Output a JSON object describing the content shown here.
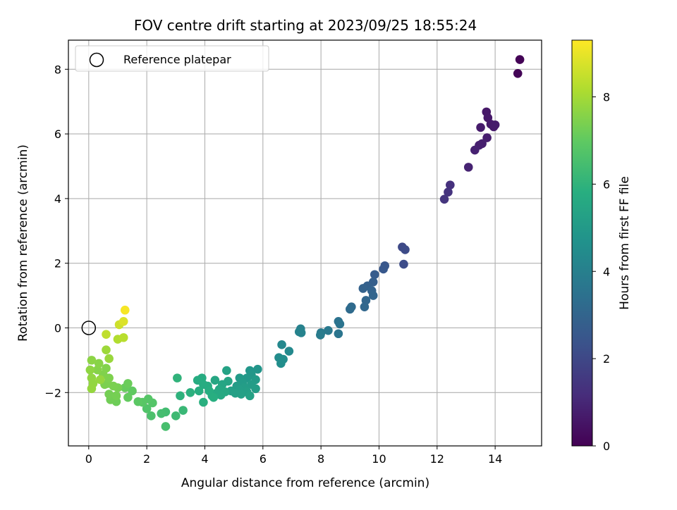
{
  "chart_data": {
    "type": "scatter",
    "title": "FOV centre drift starting at 2023/09/25 18:55:24",
    "xlabel": "Angular distance from reference (arcmin)",
    "ylabel": "Rotation from reference (arcmin)",
    "xlim": [
      -0.7,
      15.6
    ],
    "ylim": [
      -3.65,
      8.9
    ],
    "xticks": [
      "0",
      "2",
      "4",
      "6",
      "8",
      "10",
      "12",
      "14"
    ],
    "yticks": [
      "−2",
      "0",
      "2",
      "4",
      "6",
      "8"
    ],
    "grid": true,
    "legend": {
      "placement": "top-left",
      "entries": [
        "Reference platepar"
      ]
    },
    "reference_point": {
      "x": 0,
      "y": 0
    },
    "colorbar": {
      "label": "Hours from first FF file",
      "range": [
        0,
        9.3
      ],
      "ticks": [
        "0",
        "2",
        "4",
        "6",
        "8"
      ],
      "colormap": "viridis"
    },
    "points": [
      {
        "x": 14.85,
        "y": 8.3,
        "c": 0.05
      },
      {
        "x": 14.78,
        "y": 7.87,
        "c": 0.1
      },
      {
        "x": 13.7,
        "y": 6.68,
        "c": 0.6
      },
      {
        "x": 13.75,
        "y": 6.5,
        "c": 0.62
      },
      {
        "x": 13.85,
        "y": 6.3,
        "c": 0.65
      },
      {
        "x": 13.95,
        "y": 6.22,
        "c": 0.67
      },
      {
        "x": 14.0,
        "y": 6.28,
        "c": 0.68
      },
      {
        "x": 13.5,
        "y": 6.2,
        "c": 0.7
      },
      {
        "x": 13.72,
        "y": 5.88,
        "c": 0.75
      },
      {
        "x": 13.55,
        "y": 5.7,
        "c": 0.78
      },
      {
        "x": 13.45,
        "y": 5.65,
        "c": 0.8
      },
      {
        "x": 13.3,
        "y": 5.5,
        "c": 0.85
      },
      {
        "x": 13.08,
        "y": 4.97,
        "c": 0.9
      },
      {
        "x": 12.45,
        "y": 4.42,
        "c": 1.3
      },
      {
        "x": 12.38,
        "y": 4.2,
        "c": 1.35
      },
      {
        "x": 12.25,
        "y": 3.98,
        "c": 1.4
      },
      {
        "x": 10.8,
        "y": 2.5,
        "c": 2.05
      },
      {
        "x": 10.9,
        "y": 2.42,
        "c": 2.1
      },
      {
        "x": 10.85,
        "y": 1.97,
        "c": 2.15
      },
      {
        "x": 10.2,
        "y": 1.92,
        "c": 2.5
      },
      {
        "x": 10.15,
        "y": 1.82,
        "c": 2.55
      },
      {
        "x": 9.85,
        "y": 1.65,
        "c": 2.7
      },
      {
        "x": 9.8,
        "y": 1.42,
        "c": 2.8
      },
      {
        "x": 9.6,
        "y": 1.3,
        "c": 2.85
      },
      {
        "x": 9.45,
        "y": 1.22,
        "c": 2.9
      },
      {
        "x": 9.75,
        "y": 1.15,
        "c": 2.95
      },
      {
        "x": 9.8,
        "y": 1.0,
        "c": 3.0
      },
      {
        "x": 9.55,
        "y": 0.85,
        "c": 3.05
      },
      {
        "x": 9.5,
        "y": 0.65,
        "c": 3.1
      },
      {
        "x": 9.05,
        "y": 0.65,
        "c": 3.2
      },
      {
        "x": 9.0,
        "y": 0.58,
        "c": 3.25
      },
      {
        "x": 8.6,
        "y": 0.2,
        "c": 3.5
      },
      {
        "x": 8.65,
        "y": 0.12,
        "c": 3.55
      },
      {
        "x": 8.6,
        "y": -0.18,
        "c": 3.6
      },
      {
        "x": 8.25,
        "y": -0.08,
        "c": 3.75
      },
      {
        "x": 8.0,
        "y": -0.15,
        "c": 3.8
      },
      {
        "x": 7.98,
        "y": -0.22,
        "c": 3.85
      },
      {
        "x": 7.3,
        "y": -0.03,
        "c": 4.05
      },
      {
        "x": 7.25,
        "y": -0.12,
        "c": 4.1
      },
      {
        "x": 7.32,
        "y": -0.15,
        "c": 4.12
      },
      {
        "x": 6.65,
        "y": -0.52,
        "c": 4.3
      },
      {
        "x": 6.9,
        "y": -0.72,
        "c": 4.35
      },
      {
        "x": 6.55,
        "y": -0.92,
        "c": 4.45
      },
      {
        "x": 6.7,
        "y": -0.97,
        "c": 4.5
      },
      {
        "x": 6.62,
        "y": -1.1,
        "c": 4.55
      },
      {
        "x": 5.82,
        "y": -1.28,
        "c": 4.8
      },
      {
        "x": 5.55,
        "y": -1.32,
        "c": 4.85
      },
      {
        "x": 5.6,
        "y": -1.45,
        "c": 4.9
      },
      {
        "x": 5.45,
        "y": -1.55,
        "c": 4.95
      },
      {
        "x": 5.2,
        "y": -1.55,
        "c": 5.0
      },
      {
        "x": 5.75,
        "y": -1.6,
        "c": 5.02
      },
      {
        "x": 5.3,
        "y": -1.7,
        "c": 5.05
      },
      {
        "x": 5.6,
        "y": -1.75,
        "c": 5.08
      },
      {
        "x": 5.1,
        "y": -1.8,
        "c": 5.1
      },
      {
        "x": 5.35,
        "y": -1.85,
        "c": 5.12
      },
      {
        "x": 5.75,
        "y": -1.88,
        "c": 5.14
      },
      {
        "x": 5.2,
        "y": -1.92,
        "c": 5.16
      },
      {
        "x": 4.9,
        "y": -1.95,
        "c": 5.2
      },
      {
        "x": 5.45,
        "y": -1.98,
        "c": 5.22
      },
      {
        "x": 5.05,
        "y": -2.02,
        "c": 5.25
      },
      {
        "x": 5.25,
        "y": -2.05,
        "c": 5.27
      },
      {
        "x": 5.55,
        "y": -2.1,
        "c": 5.3
      },
      {
        "x": 4.75,
        "y": -1.32,
        "c": 5.35
      },
      {
        "x": 4.8,
        "y": -1.65,
        "c": 5.4
      },
      {
        "x": 4.6,
        "y": -1.75,
        "c": 5.45
      },
      {
        "x": 4.35,
        "y": -1.62,
        "c": 5.5
      },
      {
        "x": 4.5,
        "y": -1.9,
        "c": 5.55
      },
      {
        "x": 4.7,
        "y": -1.98,
        "c": 5.58
      },
      {
        "x": 4.4,
        "y": -2.02,
        "c": 5.6
      },
      {
        "x": 4.55,
        "y": -2.08,
        "c": 5.62
      },
      {
        "x": 4.25,
        "y": -2.1,
        "c": 5.65
      },
      {
        "x": 4.1,
        "y": -1.8,
        "c": 5.68
      },
      {
        "x": 3.9,
        "y": -1.55,
        "c": 5.7
      },
      {
        "x": 3.75,
        "y": -1.62,
        "c": 5.72
      },
      {
        "x": 3.95,
        "y": -1.75,
        "c": 5.74
      },
      {
        "x": 4.15,
        "y": -1.95,
        "c": 5.76
      },
      {
        "x": 3.8,
        "y": -1.95,
        "c": 5.78
      },
      {
        "x": 4.3,
        "y": -2.15,
        "c": 5.8
      },
      {
        "x": 3.95,
        "y": -2.3,
        "c": 5.85
      },
      {
        "x": 3.5,
        "y": -2.0,
        "c": 5.9
      },
      {
        "x": 3.15,
        "y": -2.1,
        "c": 5.95
      },
      {
        "x": 3.05,
        "y": -1.55,
        "c": 6.0
      },
      {
        "x": 3.25,
        "y": -2.55,
        "c": 6.2
      },
      {
        "x": 3.0,
        "y": -2.72,
        "c": 6.3
      },
      {
        "x": 2.65,
        "y": -2.6,
        "c": 6.4
      },
      {
        "x": 2.5,
        "y": -2.65,
        "c": 6.45
      },
      {
        "x": 2.65,
        "y": -3.05,
        "c": 6.5
      },
      {
        "x": 2.15,
        "y": -2.72,
        "c": 6.6
      },
      {
        "x": 2.0,
        "y": -2.5,
        "c": 6.7
      },
      {
        "x": 2.2,
        "y": -2.32,
        "c": 6.75
      },
      {
        "x": 2.05,
        "y": -2.2,
        "c": 6.8
      },
      {
        "x": 1.85,
        "y": -2.3,
        "c": 6.85
      },
      {
        "x": 1.7,
        "y": -2.28,
        "c": 6.9
      },
      {
        "x": 1.5,
        "y": -1.95,
        "c": 7.0
      },
      {
        "x": 1.35,
        "y": -2.15,
        "c": 7.05
      },
      {
        "x": 1.25,
        "y": -1.85,
        "c": 7.1
      },
      {
        "x": 1.35,
        "y": -1.72,
        "c": 7.15
      },
      {
        "x": 0.95,
        "y": -2.28,
        "c": 7.2
      },
      {
        "x": 0.75,
        "y": -2.22,
        "c": 7.25
      },
      {
        "x": 0.7,
        "y": -2.05,
        "c": 7.3
      },
      {
        "x": 0.95,
        "y": -2.1,
        "c": 7.32
      },
      {
        "x": 1.0,
        "y": -1.85,
        "c": 7.35
      },
      {
        "x": 0.85,
        "y": -1.8,
        "c": 7.38
      },
      {
        "x": 0.65,
        "y": -1.72,
        "c": 7.4
      },
      {
        "x": 0.55,
        "y": -1.75,
        "c": 7.42
      },
      {
        "x": 0.7,
        "y": -1.55,
        "c": 7.45
      },
      {
        "x": 0.5,
        "y": -1.45,
        "c": 7.48
      },
      {
        "x": 0.6,
        "y": -1.25,
        "c": 7.5
      },
      {
        "x": 0.3,
        "y": -1.3,
        "c": 7.55
      },
      {
        "x": 0.35,
        "y": -1.1,
        "c": 7.6
      },
      {
        "x": 0.1,
        "y": -1.0,
        "c": 7.65
      },
      {
        "x": 0.05,
        "y": -1.3,
        "c": 7.7
      },
      {
        "x": 0.1,
        "y": -1.55,
        "c": 7.72
      },
      {
        "x": 0.15,
        "y": -1.72,
        "c": 7.75
      },
      {
        "x": 0.1,
        "y": -1.88,
        "c": 7.78
      },
      {
        "x": 0.4,
        "y": -1.6,
        "c": 7.8
      },
      {
        "x": 0.7,
        "y": -0.95,
        "c": 7.85
      },
      {
        "x": 0.6,
        "y": -0.68,
        "c": 7.9
      },
      {
        "x": 1.0,
        "y": -0.35,
        "c": 8.2
      },
      {
        "x": 1.2,
        "y": -0.3,
        "c": 8.3
      },
      {
        "x": 0.6,
        "y": -0.2,
        "c": 8.4
      },
      {
        "x": 1.05,
        "y": 0.1,
        "c": 8.6
      },
      {
        "x": 1.2,
        "y": 0.2,
        "c": 8.8
      },
      {
        "x": 1.25,
        "y": 0.55,
        "c": 9.2
      }
    ]
  }
}
